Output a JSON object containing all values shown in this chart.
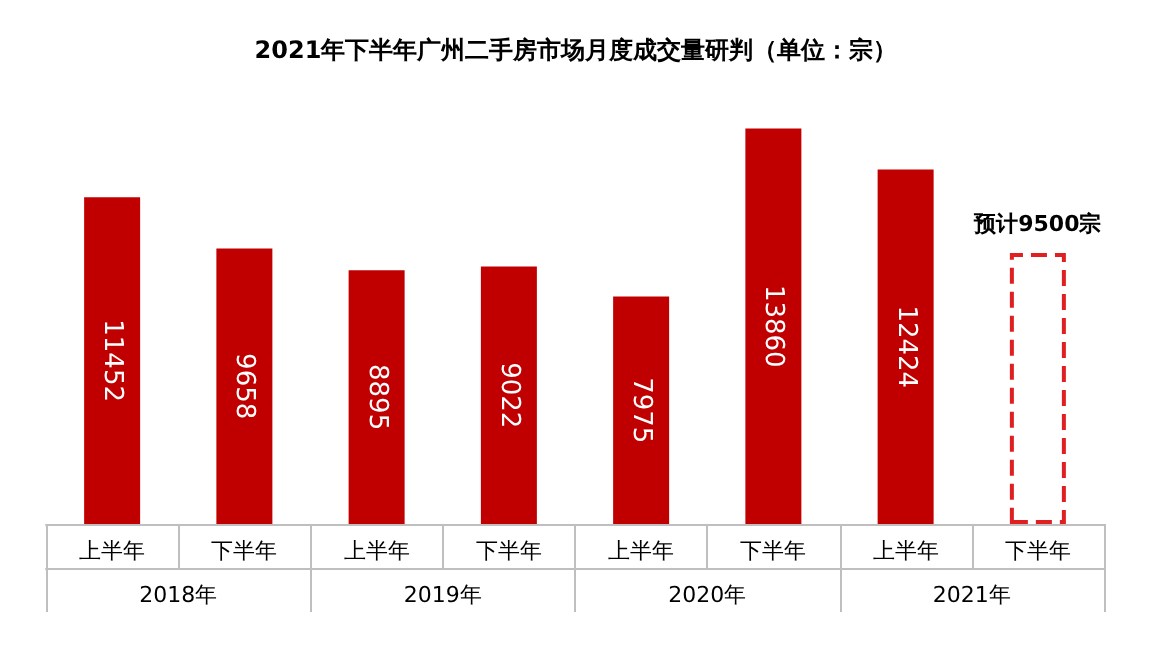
{
  "chart_data": {
    "type": "bar",
    "title": "2021年下半年广州二手房市场月度成交量研判（单位：宗）",
    "categories": [
      "上半年",
      "下半年",
      "上半年",
      "下半年",
      "上半年",
      "下半年",
      "上半年",
      "下半年"
    ],
    "series": [
      {
        "color": "#c00000",
        "values": [
          11452,
          9658,
          8895,
          9022,
          7975,
          13860,
          12424,
          null
        ],
        "value_labels": [
          "11452",
          "9658",
          "8895",
          "9022",
          "7975",
          "13860",
          "12424",
          null
        ]
      },
      {
        "color": "#e02020",
        "line_style": "dashed",
        "values": [
          null,
          null,
          null,
          null,
          null,
          null,
          null,
          9500
        ]
      }
    ],
    "annotations": [
      "2018年",
      "2019年",
      "2020年",
      "2021年",
      {
        "text": "预计9500宗",
        "y": 9500
      }
    ],
    "tick_labels": "x"
  }
}
